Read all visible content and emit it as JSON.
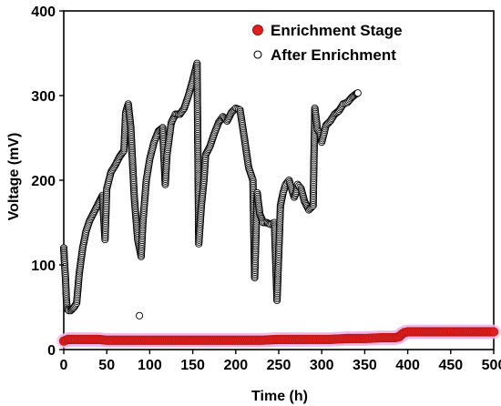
{
  "chart_data": {
    "type": "scatter",
    "title": "",
    "xlabel": "Time (h)",
    "ylabel": "Voltage (mV)",
    "xlim": [
      0,
      500
    ],
    "ylim": [
      0,
      400
    ],
    "xticks": [
      0,
      50,
      100,
      150,
      200,
      250,
      300,
      350,
      400,
      450,
      500
    ],
    "yticks": [
      0,
      100,
      200,
      300,
      400
    ],
    "grid": false,
    "legend_position": "top-right",
    "series": [
      {
        "name": "Enrichment Stage",
        "marker": "filled-circle",
        "color": "#e0201e",
        "highlight_color": "#f3b3e6",
        "points": [
          [
            0,
            10
          ],
          [
            5,
            12
          ],
          [
            10,
            12
          ],
          [
            20,
            12
          ],
          [
            30,
            12
          ],
          [
            40,
            12
          ],
          [
            50,
            11
          ],
          [
            70,
            11
          ],
          [
            90,
            11
          ],
          [
            110,
            11
          ],
          [
            130,
            11
          ],
          [
            150,
            11
          ],
          [
            170,
            11
          ],
          [
            190,
            11
          ],
          [
            210,
            11
          ],
          [
            230,
            11
          ],
          [
            250,
            12
          ],
          [
            270,
            12
          ],
          [
            290,
            12
          ],
          [
            310,
            12
          ],
          [
            330,
            13
          ],
          [
            350,
            13
          ],
          [
            370,
            14
          ],
          [
            385,
            14
          ],
          [
            390,
            15
          ],
          [
            393,
            18
          ],
          [
            396,
            20
          ],
          [
            400,
            21
          ],
          [
            420,
            21
          ],
          [
            440,
            21
          ],
          [
            460,
            21
          ],
          [
            480,
            21
          ],
          [
            500,
            21
          ]
        ]
      },
      {
        "name": "After Enrichment",
        "marker": "open-circle",
        "color": "#000000",
        "points": [
          [
            0,
            120
          ],
          [
            1,
            100
          ],
          [
            2,
            85
          ],
          [
            3,
            60
          ],
          [
            4,
            48
          ],
          [
            6,
            46
          ],
          [
            8,
            46
          ],
          [
            10,
            48
          ],
          [
            12,
            50
          ],
          [
            15,
            55
          ],
          [
            18,
            90
          ],
          [
            22,
            120
          ],
          [
            26,
            140
          ],
          [
            30,
            152
          ],
          [
            35,
            162
          ],
          [
            40,
            172
          ],
          [
            45,
            182
          ],
          [
            48,
            130
          ],
          [
            50,
            190
          ],
          [
            55,
            210
          ],
          [
            60,
            218
          ],
          [
            65,
            228
          ],
          [
            70,
            235
          ],
          [
            72,
            280
          ],
          [
            75,
            290
          ],
          [
            78,
            262
          ],
          [
            82,
            180
          ],
          [
            86,
            130
          ],
          [
            90,
            110
          ],
          [
            92,
            150
          ],
          [
            96,
            200
          ],
          [
            100,
            225
          ],
          [
            105,
            245
          ],
          [
            110,
            258
          ],
          [
            115,
            262
          ],
          [
            118,
            195
          ],
          [
            120,
            230
          ],
          [
            125,
            268
          ],
          [
            130,
            278
          ],
          [
            135,
            278
          ],
          [
            140,
            285
          ],
          [
            145,
            300
          ],
          [
            150,
            318
          ],
          [
            155,
            338
          ],
          [
            157,
            125
          ],
          [
            160,
            170
          ],
          [
            163,
            200
          ],
          [
            165,
            230
          ],
          [
            170,
            240
          ],
          [
            175,
            255
          ],
          [
            180,
            268
          ],
          [
            185,
            275
          ],
          [
            190,
            270
          ],
          [
            195,
            280
          ],
          [
            200,
            285
          ],
          [
            205,
            283
          ],
          [
            210,
            250
          ],
          [
            215,
            215
          ],
          [
            220,
            200
          ],
          [
            222,
            85
          ],
          [
            225,
            185
          ],
          [
            228,
            160
          ],
          [
            232,
            150
          ],
          [
            236,
            150
          ],
          [
            240,
            148
          ],
          [
            245,
            150
          ],
          [
            248,
            58
          ],
          [
            252,
            170
          ],
          [
            255,
            185
          ],
          [
            258,
            195
          ],
          [
            262,
            200
          ],
          [
            265,
            190
          ],
          [
            268,
            180
          ],
          [
            270,
            185
          ],
          [
            272,
            195
          ],
          [
            276,
            190
          ],
          [
            280,
            175
          ],
          [
            285,
            165
          ],
          [
            290,
            170
          ],
          [
            292,
            285
          ],
          [
            295,
            260
          ],
          [
            298,
            255
          ],
          [
            300,
            245
          ],
          [
            305,
            265
          ],
          [
            310,
            270
          ],
          [
            315,
            278
          ],
          [
            320,
            282
          ],
          [
            325,
            290
          ],
          [
            330,
            292
          ],
          [
            335,
            298
          ],
          [
            340,
            302
          ],
          [
            342,
            303
          ],
          [
            88,
            40
          ]
        ]
      }
    ]
  }
}
